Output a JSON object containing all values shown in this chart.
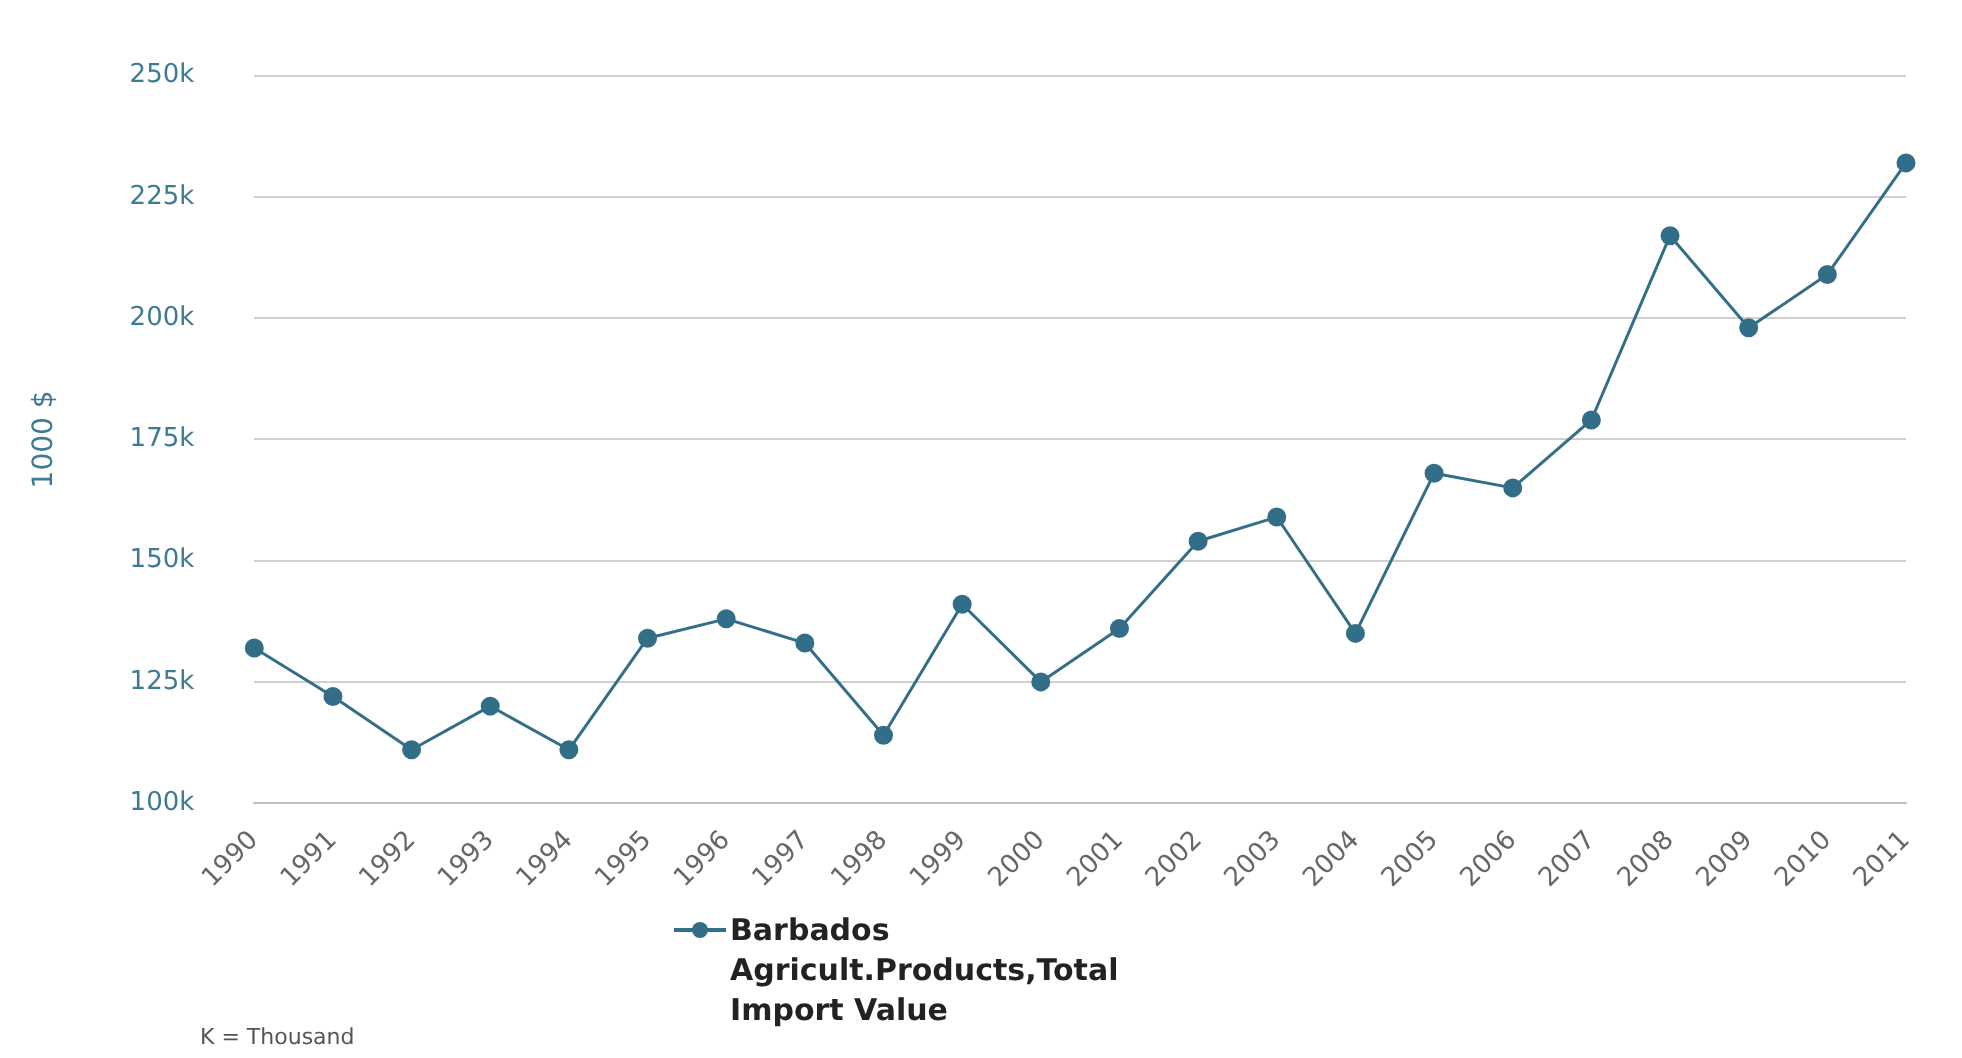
{
  "chart_data": {
    "type": "line",
    "ylabel": "1000 $",
    "categories": [
      "1990",
      "1991",
      "1992",
      "1993",
      "1994",
      "1995",
      "1996",
      "1997",
      "1998",
      "1999",
      "2000",
      "2001",
      "2002",
      "2003",
      "2004",
      "2005",
      "2006",
      "2007",
      "2008",
      "2009",
      "2010",
      "2011"
    ],
    "series": [
      {
        "name": "Barbados Agricult.Products,Total Import Value",
        "color": "#336e88",
        "values": [
          132000,
          122000,
          111000,
          120000,
          111000,
          134000,
          138000,
          133000,
          114000,
          141000,
          125000,
          136000,
          154000,
          159000,
          135000,
          168000,
          165000,
          179000,
          217000,
          198000,
          209000,
          232000
        ]
      }
    ],
    "ylim": [
      100000,
      250000
    ],
    "yticks": [
      {
        "value": 100000,
        "label": "100k"
      },
      {
        "value": 125000,
        "label": "125k"
      },
      {
        "value": 150000,
        "label": "150k"
      },
      {
        "value": 175000,
        "label": "175k"
      },
      {
        "value": 200000,
        "label": "200k"
      },
      {
        "value": 225000,
        "label": "225k"
      },
      {
        "value": 250000,
        "label": "250k"
      }
    ],
    "grid": "y",
    "legend": "bottom",
    "marker": "circle",
    "line_style": "solid",
    "annotations": [
      "K = Thousand"
    ]
  }
}
